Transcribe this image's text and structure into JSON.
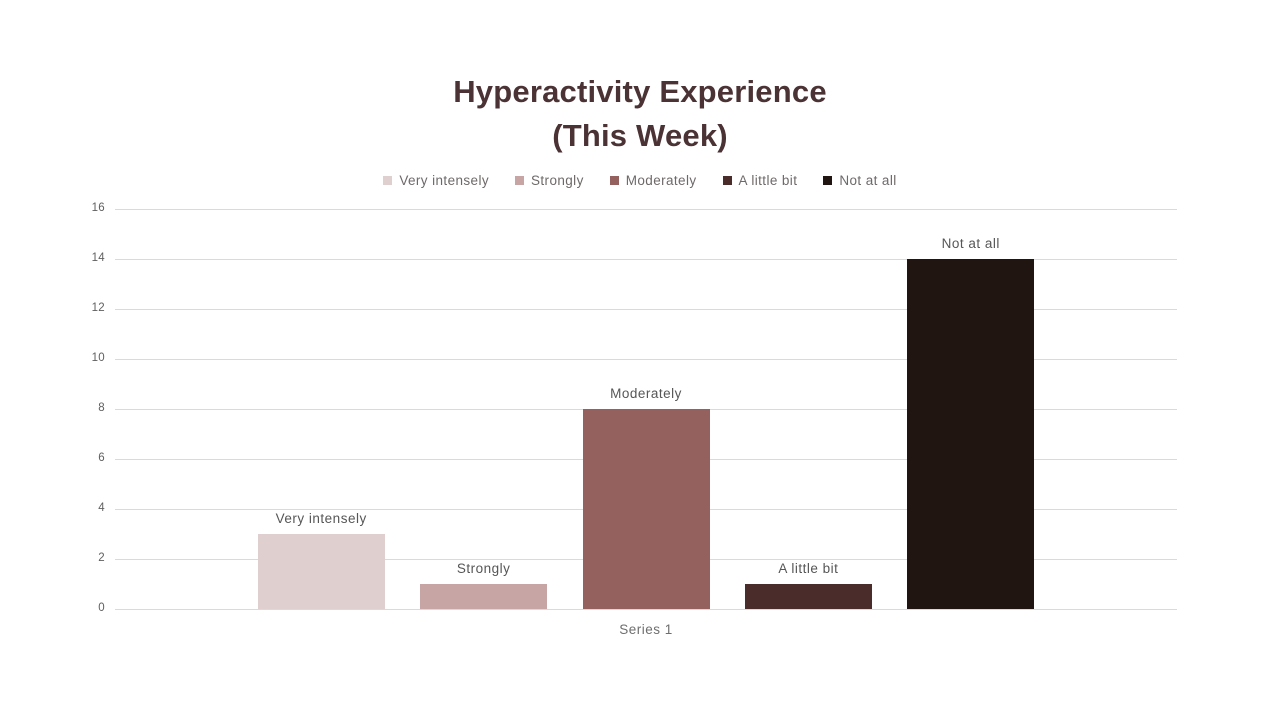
{
  "page": {
    "background": "#ffffff"
  },
  "title": {
    "line1": "Hyperactivity Experience",
    "line2": "(This Week)",
    "color": "#4B3234"
  },
  "chart_data": {
    "type": "bar",
    "title": "Hyperactivity Experience (This Week)",
    "categories": [
      "Series 1"
    ],
    "series": [
      {
        "name": "Very intensely",
        "values": [
          3
        ],
        "color": "#DFD0CF"
      },
      {
        "name": "Strongly",
        "values": [
          1
        ],
        "color": "#C6A5A4"
      },
      {
        "name": "Moderately",
        "values": [
          8
        ],
        "color": "#95615F"
      },
      {
        "name": "A little bit",
        "values": [
          1
        ],
        "color": "#4A2D2A"
      },
      {
        "name": "Not at all",
        "values": [
          14
        ],
        "color": "#211511"
      }
    ],
    "xlabel": "Series 1",
    "ylabel": "",
    "ylim": [
      0,
      16
    ],
    "y_ticks": [
      0,
      2,
      4,
      6,
      8,
      10,
      12,
      14,
      16
    ],
    "grid": true,
    "legend_position": "top",
    "bar_value_labels": false,
    "bar_name_labels": true
  },
  "colors": {
    "grid": "#DADADA",
    "axis_tick_text": "#5F5F5F",
    "bar_label_text": "#565656",
    "legend_text": "#6E6969",
    "xlabel_text": "#6E6E6E"
  }
}
